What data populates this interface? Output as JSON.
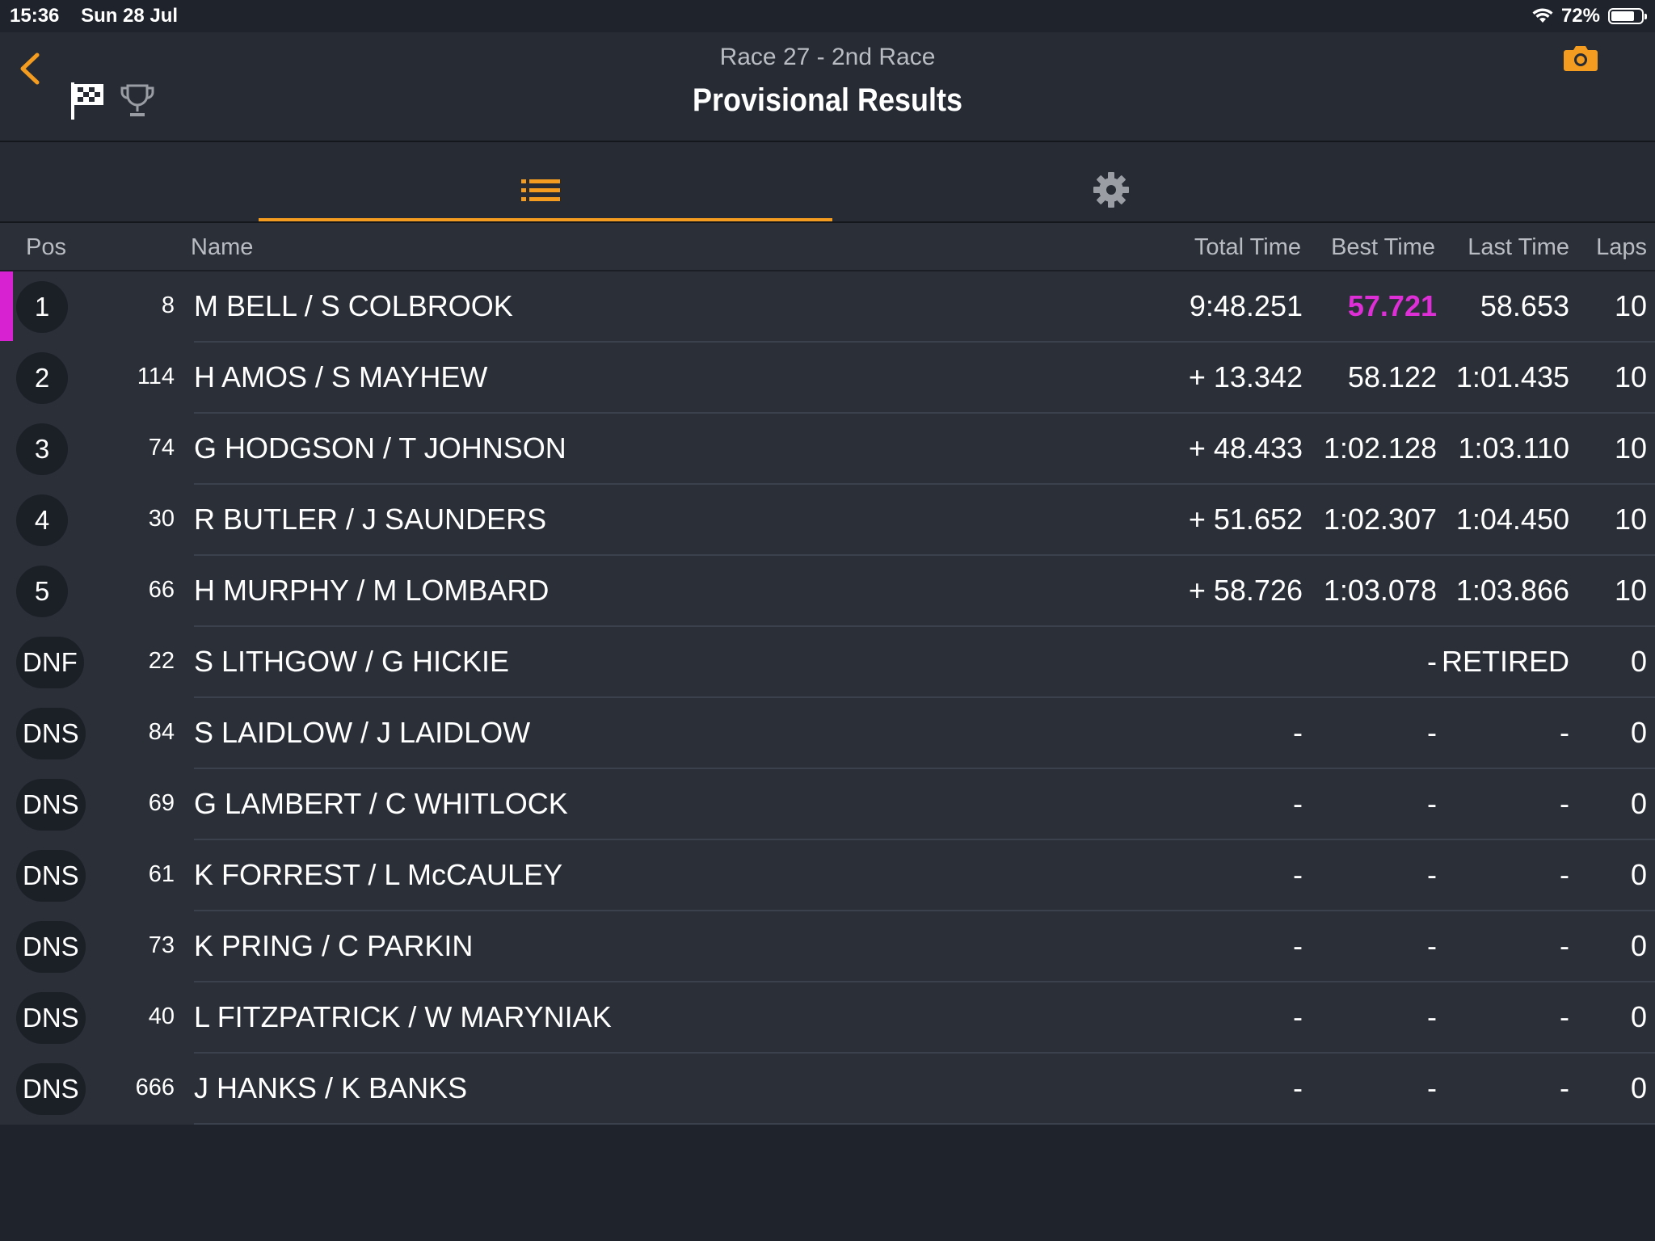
{
  "status_bar": {
    "time": "15:36",
    "date": "Sun 28 Jul",
    "battery": "72%",
    "battery_level": 0.72
  },
  "header": {
    "subtitle": "Race 27 - 2nd Race",
    "title": "Provisional Results"
  },
  "columns": {
    "pos": "Pos",
    "name": "Name",
    "total": "Total Time",
    "best": "Best Time",
    "last": "Last Time",
    "laps": "Laps"
  },
  "rows": [
    {
      "pos": "1",
      "num": "8",
      "name": "M BELL / S COLBROOK",
      "total": "9:48.251",
      "best": "57.721",
      "last": "58.653",
      "laps": "10"
    },
    {
      "pos": "2",
      "num": "114",
      "name": "H AMOS / S MAYHEW",
      "total": "+ 13.342",
      "best": "58.122",
      "last": "1:01.435",
      "laps": "10"
    },
    {
      "pos": "3",
      "num": "74",
      "name": "G HODGSON / T JOHNSON",
      "total": "+ 48.433",
      "best": "1:02.128",
      "last": "1:03.110",
      "laps": "10"
    },
    {
      "pos": "4",
      "num": "30",
      "name": "R BUTLER / J SAUNDERS",
      "total": "+ 51.652",
      "best": "1:02.307",
      "last": "1:04.450",
      "laps": "10"
    },
    {
      "pos": "5",
      "num": "66",
      "name": "H MURPHY / M LOMBARD",
      "total": "+ 58.726",
      "best": "1:03.078",
      "last": "1:03.866",
      "laps": "10"
    },
    {
      "pos": "DNF",
      "num": "22",
      "name": "S LITHGOW / G HICKIE",
      "total": "",
      "best": "-",
      "last": "RETIRED",
      "laps": "0"
    },
    {
      "pos": "DNS",
      "num": "84",
      "name": "S LAIDLOW / J LAIDLOW",
      "total": "-",
      "best": "-",
      "last": "-",
      "laps": "0"
    },
    {
      "pos": "DNS",
      "num": "69",
      "name": "G LAMBERT / C WHITLOCK",
      "total": "-",
      "best": "-",
      "last": "-",
      "laps": "0"
    },
    {
      "pos": "DNS",
      "num": "61",
      "name": "K FORREST / L McCAULEY",
      "total": "-",
      "best": "-",
      "last": "-",
      "laps": "0"
    },
    {
      "pos": "DNS",
      "num": "73",
      "name": "K PRING / C PARKIN",
      "total": "-",
      "best": "-",
      "last": "-",
      "laps": "0"
    },
    {
      "pos": "DNS",
      "num": "40",
      "name": "L FITZPATRICK / W MARYNIAK",
      "total": "-",
      "best": "-",
      "last": "-",
      "laps": "0"
    },
    {
      "pos": "DNS",
      "num": "666",
      "name": "J HANKS / K BANKS",
      "total": "-",
      "best": "-",
      "last": "-",
      "laps": "0"
    }
  ],
  "colors": {
    "accent": "#f39c1f",
    "best_lap": "#de2ed6",
    "background": "#1f232b",
    "row": "#2a2f38"
  },
  "icons": {
    "back": "chevron-left-icon",
    "flag": "checkered-flag-icon",
    "trophy": "trophy-icon",
    "camera": "camera-icon",
    "list": "list-icon",
    "settings": "gear-icon",
    "wifi": "wifi-icon",
    "battery": "battery-icon"
  }
}
